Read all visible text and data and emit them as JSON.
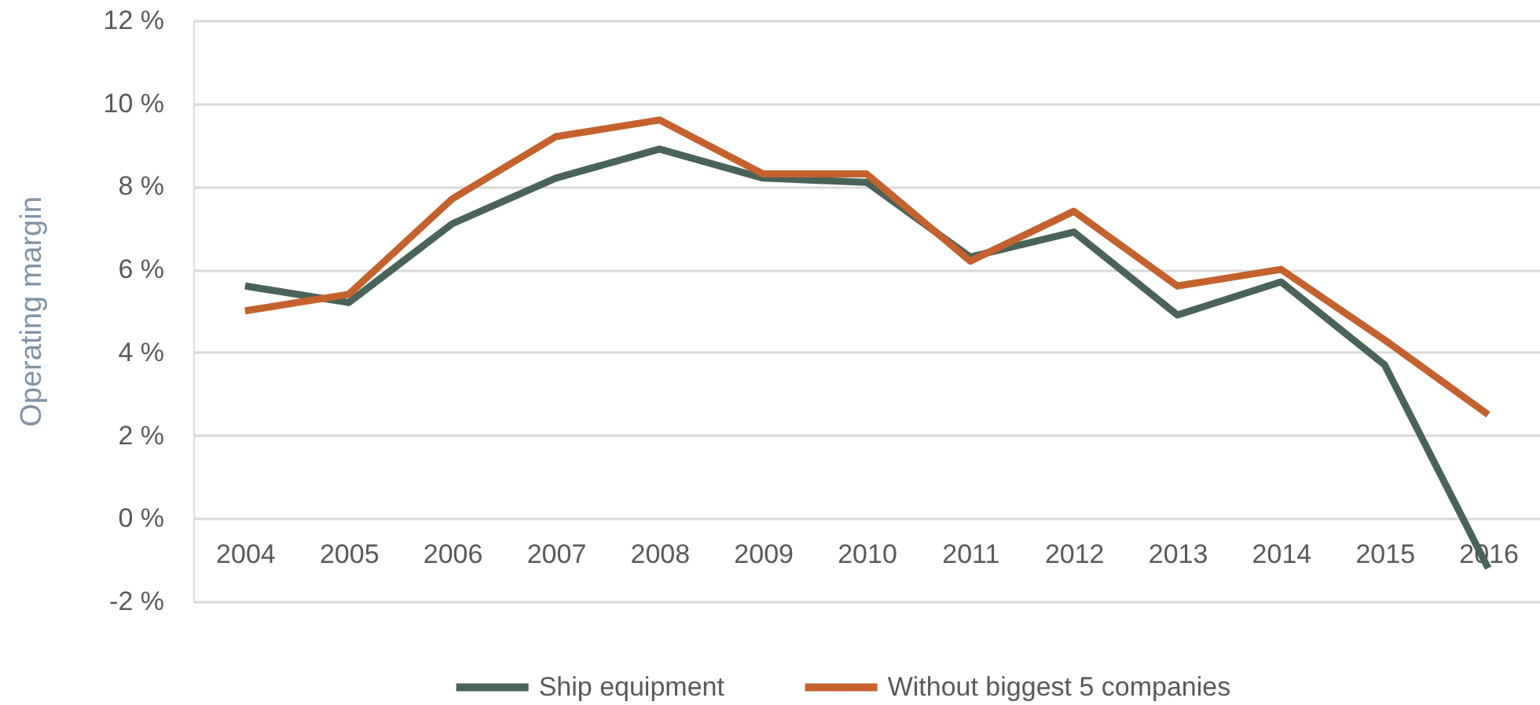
{
  "chart_data": {
    "type": "line",
    "ylabel": "Operating margin",
    "categories": [
      "2004",
      "2005",
      "2006",
      "2007",
      "2008",
      "2009",
      "2010",
      "2011",
      "2012",
      "2013",
      "2014",
      "2015",
      "2016"
    ],
    "series": [
      {
        "name": "Ship equipment",
        "color": "#4a6358",
        "values": [
          5.6,
          5.2,
          7.1,
          8.2,
          8.9,
          8.2,
          8.1,
          6.3,
          6.9,
          4.9,
          5.7,
          3.7,
          -1.2
        ]
      },
      {
        "name": "Without biggest 5 companies",
        "color": "#c4622d",
        "values": [
          5.0,
          5.4,
          7.7,
          9.2,
          9.6,
          8.3,
          8.3,
          6.2,
          7.4,
          5.6,
          6.0,
          4.3,
          2.5
        ]
      }
    ],
    "ylim": [
      -2,
      12
    ],
    "yticks": [
      {
        "value": -2,
        "label": "-2 %"
      },
      {
        "value": 0,
        "label": "0 %"
      },
      {
        "value": 2,
        "label": "2 %"
      },
      {
        "value": 4,
        "label": "4 %"
      },
      {
        "value": 6,
        "label": "6 %"
      },
      {
        "value": 8,
        "label": "8 %"
      },
      {
        "value": 10,
        "label": "10 %"
      },
      {
        "value": 12,
        "label": "12 %"
      }
    ],
    "grid": "y",
    "legend": "bottom",
    "marker": "none",
    "line_style": "solid"
  }
}
